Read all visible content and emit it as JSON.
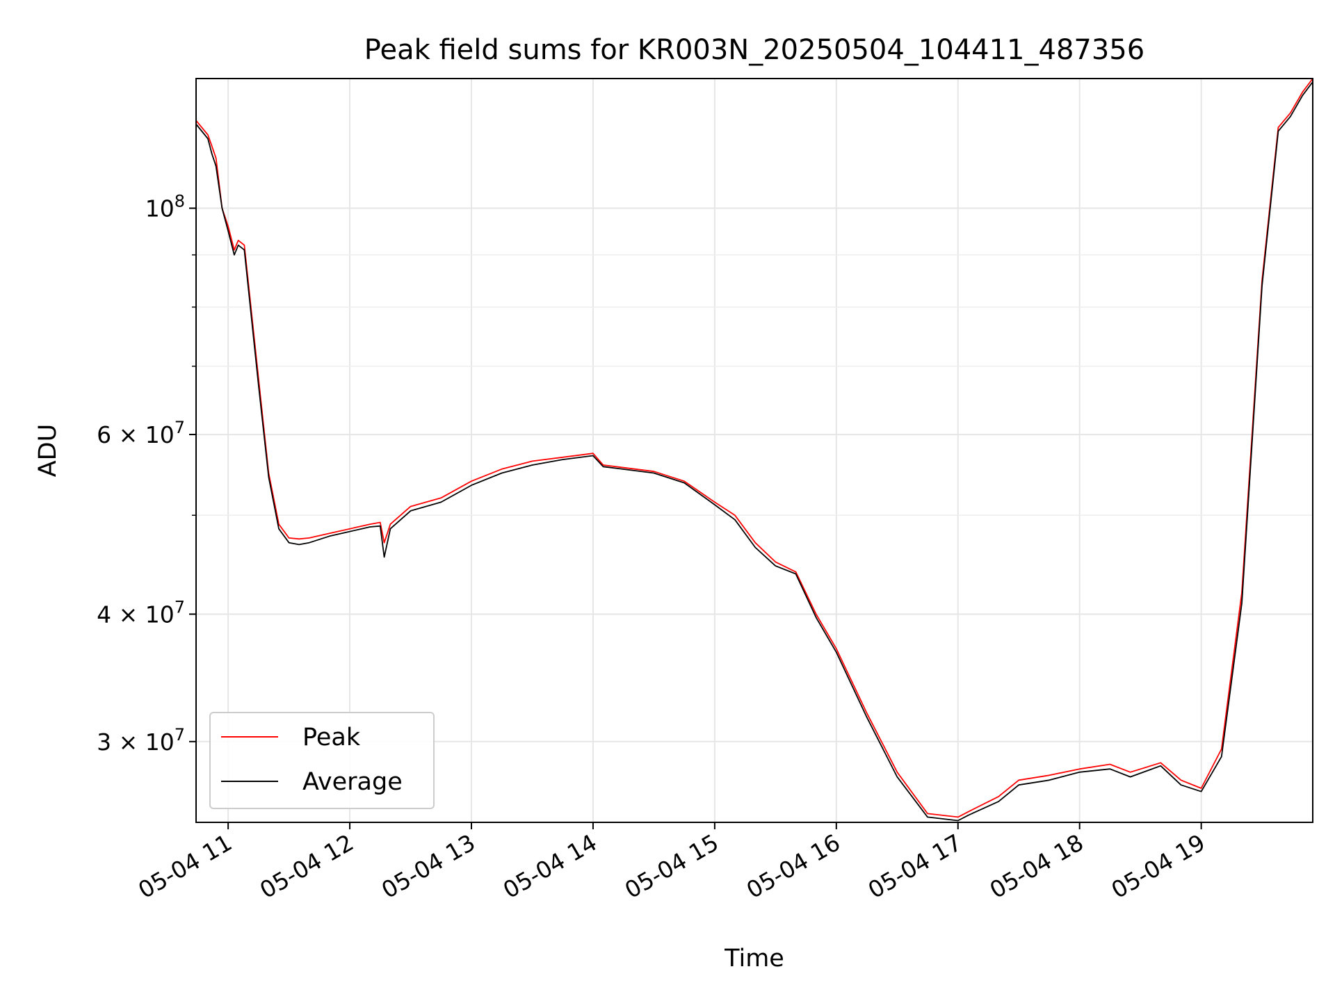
{
  "chart_data": {
    "type": "line",
    "title": "Peak field sums for KR003N_20250504_104411_487356",
    "xlabel": "Time",
    "ylabel": "ADU",
    "yscale": "log",
    "grid": true,
    "legend_position": "lower-left",
    "xlim": [
      "2025-05-04T10:44:11",
      "2025-05-04T19:55:00"
    ],
    "ylim": [
      25000000,
      134000000
    ],
    "x_ticks": [
      {
        "value": "2025-05-04T11:00",
        "label": "05-04 11"
      },
      {
        "value": "2025-05-04T12:00",
        "label": "05-04 12"
      },
      {
        "value": "2025-05-04T13:00",
        "label": "05-04 13"
      },
      {
        "value": "2025-05-04T14:00",
        "label": "05-04 14"
      },
      {
        "value": "2025-05-04T15:00",
        "label": "05-04 15"
      },
      {
        "value": "2025-05-04T16:00",
        "label": "05-04 16"
      },
      {
        "value": "2025-05-04T17:00",
        "label": "05-04 17"
      },
      {
        "value": "2025-05-04T18:00",
        "label": "05-04 18"
      },
      {
        "value": "2025-05-04T19:00",
        "label": "05-04 19"
      }
    ],
    "y_ticks": [
      {
        "value": 30000000,
        "mantissa": "3",
        "exp": "7"
      },
      {
        "value": 40000000,
        "mantissa": "4",
        "exp": "7"
      },
      {
        "value": 60000000,
        "mantissa": "6",
        "exp": "7"
      },
      {
        "value": 100000000,
        "mantissa": "",
        "exp": "8"
      }
    ],
    "y_minor_ticks": [
      50000000,
      70000000,
      80000000,
      90000000
    ],
    "x": [
      "2025-05-04T10:44",
      "2025-05-04T10:50",
      "2025-05-04T10:52",
      "2025-05-04T10:54",
      "2025-05-04T10:57",
      "2025-05-04T11:00",
      "2025-05-04T11:03",
      "2025-05-04T11:05",
      "2025-05-04T11:08",
      "2025-05-04T11:15",
      "2025-05-04T11:20",
      "2025-05-04T11:25",
      "2025-05-04T11:30",
      "2025-05-04T11:35",
      "2025-05-04T11:40",
      "2025-05-04T11:50",
      "2025-05-04T12:00",
      "2025-05-04T12:10",
      "2025-05-04T12:15",
      "2025-05-04T12:17",
      "2025-05-04T12:20",
      "2025-05-04T12:30",
      "2025-05-04T12:45",
      "2025-05-04T13:00",
      "2025-05-04T13:15",
      "2025-05-04T13:30",
      "2025-05-04T13:45",
      "2025-05-04T14:00",
      "2025-05-04T14:05",
      "2025-05-04T14:30",
      "2025-05-04T14:45",
      "2025-05-04T15:00",
      "2025-05-04T15:10",
      "2025-05-04T15:20",
      "2025-05-04T15:30",
      "2025-05-04T15:40",
      "2025-05-04T15:50",
      "2025-05-04T16:00",
      "2025-05-04T16:15",
      "2025-05-04T16:30",
      "2025-05-04T16:45",
      "2025-05-04T17:00",
      "2025-05-04T17:05",
      "2025-05-04T17:20",
      "2025-05-04T17:30",
      "2025-05-04T17:45",
      "2025-05-04T18:00",
      "2025-05-04T18:15",
      "2025-05-04T18:25",
      "2025-05-04T18:40",
      "2025-05-04T18:50",
      "2025-05-04T19:00",
      "2025-05-04T19:10",
      "2025-05-04T19:20",
      "2025-05-04T19:30",
      "2025-05-04T19:38",
      "2025-05-04T19:44",
      "2025-05-04T19:50",
      "2025-05-04T19:55"
    ],
    "series": [
      {
        "name": "Peak",
        "color": "#ff0000",
        "values": [
          122000000,
          118000000,
          115000000,
          112000000,
          100000000,
          96000000,
          91000000,
          93000000,
          92000000,
          68000000,
          55000000,
          49000000,
          47500000,
          47400000,
          47500000,
          48000000,
          48500000,
          49000000,
          49200000,
          47000000,
          49000000,
          51000000,
          52000000,
          54000000,
          55500000,
          56500000,
          57000000,
          57500000,
          56000000,
          55200000,
          54000000,
          51500000,
          50000000,
          47000000,
          45000000,
          44000000,
          40000000,
          37000000,
          32000000,
          28000000,
          25500000,
          25300000,
          25600000,
          26500000,
          27500000,
          27800000,
          28200000,
          28500000,
          28000000,
          28600000,
          27500000,
          27000000,
          29500000,
          42000000,
          85000000,
          120000000,
          124000000,
          130000000,
          134000000
        ]
      },
      {
        "name": "Average",
        "color": "#000000",
        "values": [
          121000000,
          117000000,
          113000000,
          110000000,
          100000000,
          95000000,
          90000000,
          92000000,
          91000000,
          67000000,
          54500000,
          48500000,
          47000000,
          46800000,
          47000000,
          47700000,
          48200000,
          48700000,
          48800000,
          45500000,
          48500000,
          50500000,
          51500000,
          53500000,
          55000000,
          56000000,
          56700000,
          57200000,
          55800000,
          55000000,
          53800000,
          51200000,
          49500000,
          46500000,
          44600000,
          43800000,
          39700000,
          36700000,
          31700000,
          27700000,
          25300000,
          25100000,
          25400000,
          26200000,
          27200000,
          27500000,
          28000000,
          28200000,
          27700000,
          28400000,
          27200000,
          26800000,
          29000000,
          41000000,
          84000000,
          119000000,
          123000000,
          129000000,
          133000000
        ]
      }
    ]
  }
}
